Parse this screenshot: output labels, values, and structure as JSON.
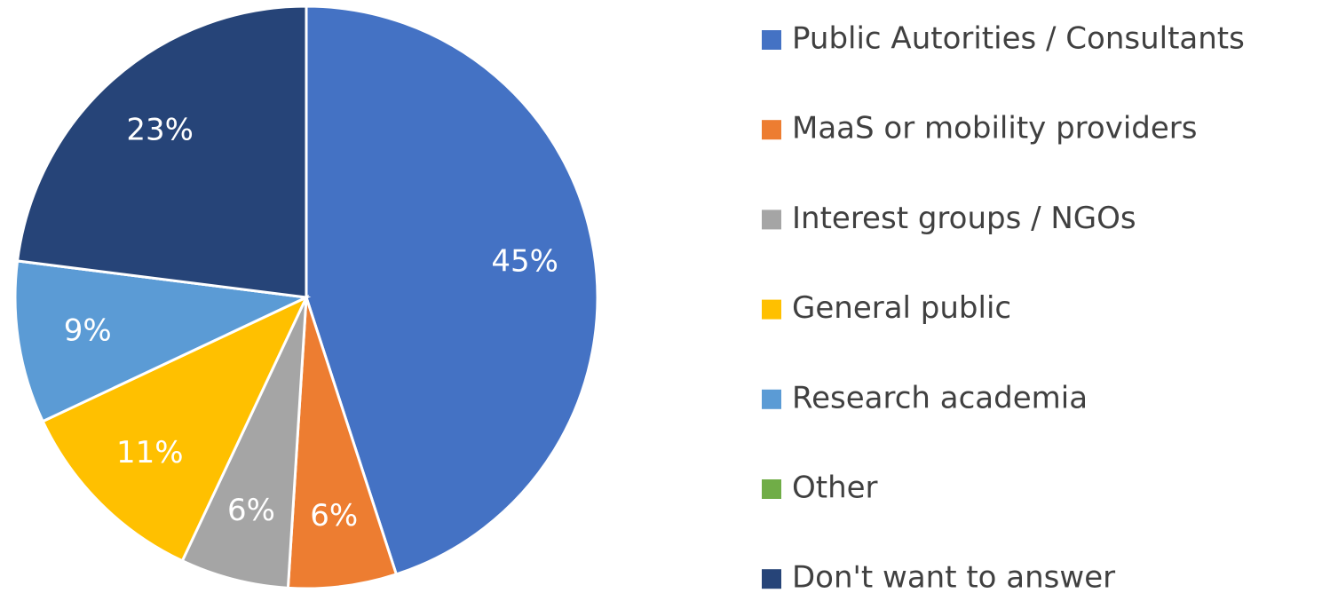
{
  "chart_data": {
    "type": "pie",
    "categories": [
      "Public Autorities / Consultants",
      "MaaS or mobility providers",
      "Interest groups / NGOs",
      "General public",
      "Research academia",
      "Other",
      "Don't want to answer"
    ],
    "values": [
      45,
      6,
      6,
      11,
      9,
      0,
      23
    ],
    "value_labels": [
      "45%",
      "6%",
      "6%",
      "11%",
      "9%",
      null,
      "23%"
    ],
    "colors": [
      "#4472c4",
      "#ed7d31",
      "#a5a5a5",
      "#ffc000",
      "#5b9bd5",
      "#70ad47",
      "#264478"
    ],
    "legend": "right"
  }
}
